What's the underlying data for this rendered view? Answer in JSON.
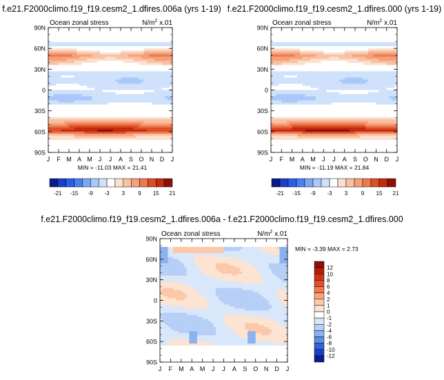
{
  "chart_data": [
    {
      "type": "heatmap",
      "title": "f.e21.F2000climo.f19_f19.cesm2_1.dfires.006a (yrs 1-19)",
      "subtitle_left": "Ocean zonal stress",
      "subtitle_right": "N/m² x.01",
      "x_ticks": [
        "J",
        "F",
        "M",
        "A",
        "M",
        "J",
        "J",
        "A",
        "S",
        "O",
        "N",
        "D",
        "J"
      ],
      "y_ticks": [
        "90N",
        "60N",
        "30N",
        "0",
        "30S",
        "60S",
        "90S"
      ],
      "ylim": [
        -90,
        90
      ],
      "min_max_text": "MIN = -11.03 MAX =  21.41",
      "min": -11.03,
      "max": 21.41,
      "colorbar": {
        "orientation": "horizontal",
        "labels": [
          "-21",
          "-15",
          "-9",
          "-3",
          "3",
          "9",
          "15",
          "21"
        ]
      },
      "zonal_profile": [
        {
          "lat": 80,
          "value": 1
        },
        {
          "lat": 65,
          "value": -4
        },
        {
          "lat": 50,
          "value": 11
        },
        {
          "lat": 40,
          "value": 5
        },
        {
          "lat": 25,
          "value": -4
        },
        {
          "lat": 12,
          "value": -5
        },
        {
          "lat": 0,
          "value": -3
        },
        {
          "lat": -12,
          "value": -6
        },
        {
          "lat": -25,
          "value": -2
        },
        {
          "lat": -40,
          "value": 4
        },
        {
          "lat": -52,
          "value": 15
        },
        {
          "lat": -58,
          "value": 20
        },
        {
          "lat": -65,
          "value": 8
        },
        {
          "lat": -75,
          "value": 0
        }
      ]
    },
    {
      "type": "heatmap",
      "title": "f.e21.F2000climo.f19_f19.cesm2_1.dfires.000 (yrs 1-19)",
      "subtitle_left": "Ocean zonal stress",
      "subtitle_right": "N/m² x.01",
      "x_ticks": [
        "J",
        "F",
        "M",
        "A",
        "M",
        "J",
        "J",
        "A",
        "S",
        "O",
        "N",
        "D",
        "J"
      ],
      "y_ticks": [
        "90N",
        "60N",
        "30N",
        "0",
        "30S",
        "60S",
        "90S"
      ],
      "ylim": [
        -90,
        90
      ],
      "min_max_text": "MIN = -11.19 MAX =  21.84",
      "min": -11.19,
      "max": 21.84,
      "colorbar": {
        "orientation": "horizontal",
        "labels": [
          "-21",
          "-15",
          "-9",
          "-3",
          "3",
          "9",
          "15",
          "21"
        ]
      },
      "zonal_profile": [
        {
          "lat": 80,
          "value": 1
        },
        {
          "lat": 65,
          "value": -4
        },
        {
          "lat": 50,
          "value": 11
        },
        {
          "lat": 40,
          "value": 5
        },
        {
          "lat": 25,
          "value": -4
        },
        {
          "lat": 12,
          "value": -5
        },
        {
          "lat": 0,
          "value": -3
        },
        {
          "lat": -12,
          "value": -6
        },
        {
          "lat": -25,
          "value": -2
        },
        {
          "lat": -40,
          "value": 4
        },
        {
          "lat": -52,
          "value": 15
        },
        {
          "lat": -58,
          "value": 21
        },
        {
          "lat": -65,
          "value": 8
        },
        {
          "lat": -75,
          "value": 0
        }
      ]
    },
    {
      "type": "heatmap",
      "title": "f.e21.F2000climo.f19_f19.cesm2_1.dfires.006a - f.e21.F2000climo.f19_f19.cesm2_1.dfires.000",
      "subtitle_left": "Ocean zonal stress",
      "subtitle_right": "N/m² x.01",
      "x_ticks": [
        "J",
        "F",
        "M",
        "A",
        "M",
        "J",
        "J",
        "A",
        "S",
        "O",
        "N",
        "D",
        "J"
      ],
      "y_ticks": [
        "90N",
        "60N",
        "30N",
        "0",
        "30S",
        "60S",
        "90S"
      ],
      "ylim": [
        -90,
        90
      ],
      "min_max_text": "MIN = -3.39 MAX =   2.73",
      "min": -3.39,
      "max": 2.73,
      "colorbar": {
        "orientation": "vertical",
        "labels": [
          "12",
          "10",
          "8",
          "6",
          "4",
          "2",
          "1",
          "0",
          "-1",
          "-2",
          "-4",
          "-6",
          "-8",
          "-10",
          "-12"
        ]
      }
    }
  ],
  "colors": {
    "abs_scale": [
      "#0a1a8c",
      "#1c3ec8",
      "#2a5ee8",
      "#4a80f0",
      "#7aa6f6",
      "#a9c8f9",
      "#cfe1fb",
      "#ffffff",
      "#fbe0d0",
      "#f9c0a2",
      "#f4a07a",
      "#ec7a4e",
      "#dc4e26",
      "#c42a10",
      "#8e0f04"
    ],
    "diff_scale": [
      "#8e0f04",
      "#b01e08",
      "#cf3414",
      "#e4502a",
      "#f27a4e",
      "#f9a47e",
      "#fbc8aa",
      "#fde3d2",
      "#d9e7fa",
      "#b6cff6",
      "#8cb1f0",
      "#5d8ee8",
      "#2f63dc",
      "#1b3fc0",
      "#0c1c8e"
    ]
  }
}
